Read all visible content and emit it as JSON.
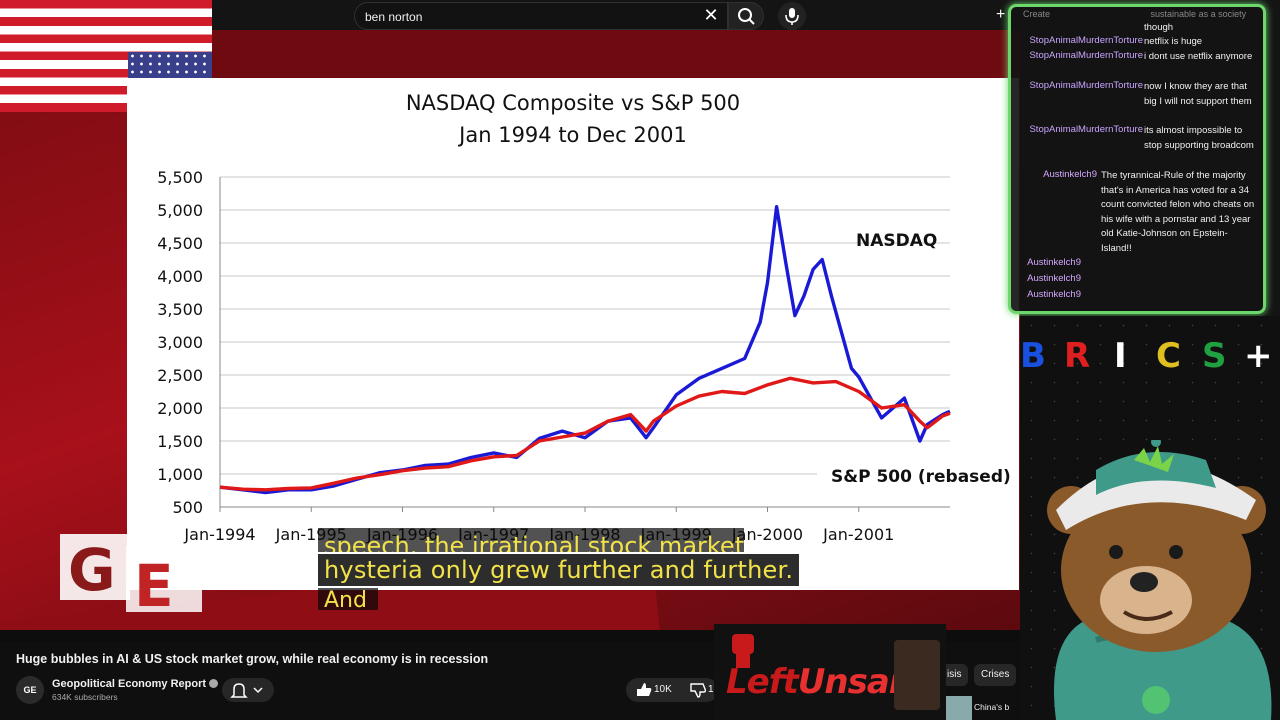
{
  "search": {
    "query": "ben norton"
  },
  "topbar": {
    "create_label": "Create"
  },
  "chart_data": {
    "type": "line",
    "title": "NASDAQ Composite vs S&P 500",
    "subtitle": "Jan 1994 to Dec 2001",
    "xlabel": "",
    "ylabel": "",
    "x_ticks": [
      "Jan-1994",
      "Jan-1995",
      "Jan-1996",
      "Jan-1997",
      "Jan-1998",
      "Jan-1999",
      "Jan-2000",
      "Jan-2001"
    ],
    "y_ticks": [
      "500",
      "1,000",
      "1,500",
      "2,000",
      "2,500",
      "3,000",
      "3,500",
      "4,000",
      "4,500",
      "5,000",
      "5,500"
    ],
    "ylim": [
      500,
      5500
    ],
    "xlim": [
      1994.0,
      2002.0
    ],
    "grid": true,
    "series": [
      {
        "name": "NASDAQ",
        "color": "#1a1ad6",
        "x": [
          1994.0,
          1994.25,
          1994.5,
          1994.75,
          1995.0,
          1995.25,
          1995.5,
          1995.75,
          1996.0,
          1996.25,
          1996.5,
          1996.75,
          1997.0,
          1997.25,
          1997.5,
          1997.75,
          1998.0,
          1998.25,
          1998.5,
          1998.67,
          1998.75,
          1999.0,
          1999.25,
          1999.5,
          1999.75,
          1999.92,
          2000.0,
          2000.1,
          2000.2,
          2000.3,
          2000.4,
          2000.5,
          2000.6,
          2000.7,
          2000.8,
          2000.92,
          2001.0,
          2001.25,
          2001.5,
          2001.67,
          2001.75,
          2001.92,
          2002.0
        ],
        "y": [
          800,
          760,
          720,
          760,
          760,
          820,
          920,
          1020,
          1060,
          1130,
          1150,
          1250,
          1320,
          1250,
          1540,
          1650,
          1550,
          1800,
          1850,
          1550,
          1700,
          2200,
          2450,
          2600,
          2750,
          3300,
          3900,
          5050,
          4200,
          3400,
          3700,
          4100,
          4250,
          3700,
          3200,
          2600,
          2470,
          1850,
          2150,
          1500,
          1750,
          1900,
          1950
        ]
      },
      {
        "name": "S&P 500 (rebased)",
        "color": "#e01818",
        "x": [
          1994.0,
          1994.25,
          1994.5,
          1994.75,
          1995.0,
          1995.25,
          1995.5,
          1995.75,
          1996.0,
          1996.25,
          1996.5,
          1996.75,
          1997.0,
          1997.25,
          1997.5,
          1997.75,
          1998.0,
          1998.25,
          1998.5,
          1998.67,
          1998.75,
          1999.0,
          1999.25,
          1999.5,
          1999.75,
          2000.0,
          2000.25,
          2000.5,
          2000.75,
          2001.0,
          2001.25,
          2001.5,
          2001.67,
          2001.75,
          2001.92,
          2002.0
        ],
        "y": [
          800,
          770,
          760,
          780,
          790,
          860,
          940,
          990,
          1050,
          1090,
          1110,
          1200,
          1260,
          1280,
          1500,
          1560,
          1620,
          1800,
          1900,
          1650,
          1800,
          2030,
          2180,
          2250,
          2220,
          2350,
          2450,
          2380,
          2400,
          2250,
          2000,
          2050,
          1800,
          1700,
          1880,
          1920
        ]
      }
    ]
  },
  "subtitles": {
    "previous": "speech, the irrational stock market",
    "current": "hysteria only grew further and further.",
    "next": "And"
  },
  "chat": {
    "top_faded": "sustainable as a society",
    "messages": [
      {
        "user": "",
        "text": "though"
      },
      {
        "user": "StopAnimalMurdernTorture",
        "text": "netflix is huge"
      },
      {
        "user": "StopAnimalMurdernTorture",
        "text": "i dont use netflix anymore"
      },
      {
        "user": "StopAnimalMurdernTorture",
        "text": "now I know they are that big I will not support them"
      },
      {
        "user": "StopAnimalMurdernTorture",
        "text": "its almost impossible to stop supporting broadcom"
      },
      {
        "user": "Austinkelch9",
        "text": "The tyrannical-Rule of the majority that's in America has voted for a 34 count convicted felon who cheats on his wife with a pornstar and 13 year old Katie-Johnson on Epstein-Island!!"
      },
      {
        "user": "Austinkelch9",
        "text": ""
      },
      {
        "user": "Austinkelch9",
        "text": ""
      },
      {
        "user": "Austinkelch9",
        "text": ""
      }
    ]
  },
  "brics": {
    "letters": [
      "B",
      "R",
      "I",
      "C",
      "S",
      "+"
    ],
    "colors": [
      "#1a50e0",
      "#e02020",
      "#ffffff",
      "#e0c020",
      "#20a040",
      "#ffffff"
    ]
  },
  "video": {
    "title": "Huge bubbles in AI & US stock market grow, while real economy is in recession",
    "channel_name": "Geopolitical Economy Report",
    "subscribers": "634K subscribers",
    "likes": "10K",
    "dislike_partial": "1",
    "channel_avatar_text": "GE"
  },
  "chips": [
    "isis",
    "Crises"
  ],
  "recommended": {
    "title_partial": "China's b"
  },
  "logo": {
    "left": "Left",
    "right": "Unsaid"
  }
}
